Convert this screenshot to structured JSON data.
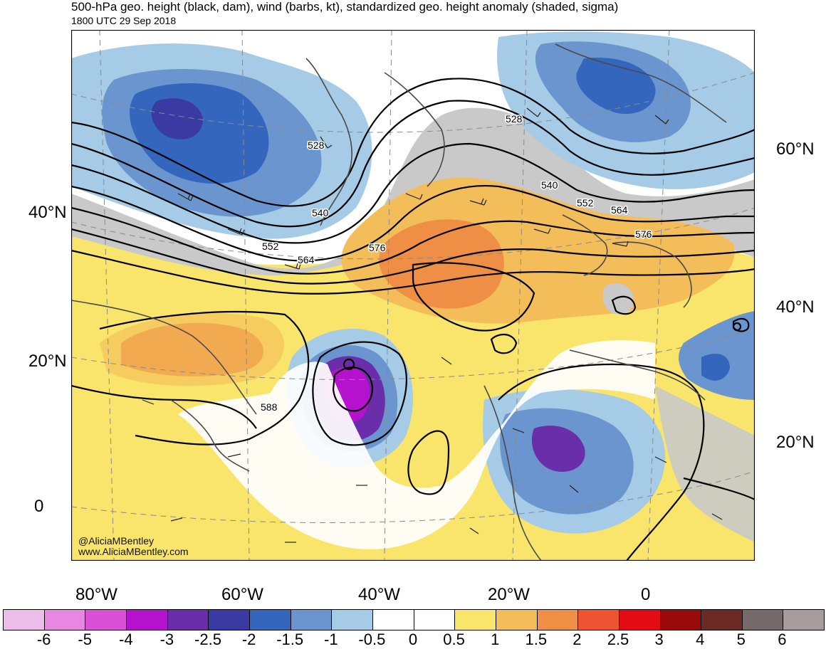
{
  "title": "500-hPa geo. height (black, dam), wind (barbs, kt), standardized geo. height anomaly (shaded, sigma)",
  "subtitle": "1800 UTC 29 Sep 2018",
  "watermark": {
    "handle": "@AliciaMBentley",
    "site": "www.AliciaMBentley.com"
  },
  "left_lat_labels": [
    "40°N",
    "20°N",
    "0"
  ],
  "right_lat_labels": [
    "60°N",
    "40°N",
    "20°N"
  ],
  "lon_labels": [
    "80°W",
    "60°W",
    "40°W",
    "20°W",
    "0"
  ],
  "contour_labels": [
    "528",
    "528",
    "540",
    "540",
    "552",
    "552",
    "564",
    "564",
    "576",
    "576",
    "588"
  ],
  "colorbar": {
    "labels": [
      "-6",
      "-5",
      "-4",
      "-3",
      "-2.5",
      "-2",
      "-1.5",
      "-1",
      "-0.5",
      "0",
      "0.5",
      "1",
      "1.5",
      "2",
      "2.5",
      "3",
      "4",
      "5",
      "6"
    ],
    "colors": [
      "#ecbde8",
      "#e787e2",
      "#d94fd6",
      "#b412cc",
      "#6a2eaa",
      "#3a3aa2",
      "#3466bd",
      "#6b95cf",
      "#a6cbe6",
      "#ffffff",
      "#ffffff",
      "#f9e46c",
      "#f3bd59",
      "#ef8e45",
      "#ef5432",
      "#e30b14",
      "#9a0a0a",
      "#6c2a26",
      "#746a69",
      "#a89d9c"
    ]
  },
  "colors": {
    "gray_high": "#c9c9c9",
    "yellow": "#f9e46c",
    "light_orange": "#f3bd59",
    "orange": "#ef8e45",
    "pale_blue": "#a6cbe6",
    "mid_blue": "#6b95cf",
    "blue": "#3466bd",
    "dark_blue": "#3a3aa2",
    "purple": "#6a2eaa",
    "magenta": "#b412cc",
    "coast": "#4a4a4a"
  }
}
